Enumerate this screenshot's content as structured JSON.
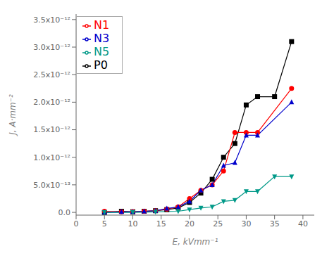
{
  "chart_data": {
    "type": "line",
    "xlabel": "E,  kVmm⁻¹",
    "ylabel": "J,  A·mm⁻²",
    "xlim": [
      0,
      42
    ],
    "ylim": [
      -5e-14,
      3.6e-12
    ],
    "xticks": [
      0,
      5,
      10,
      15,
      20,
      25,
      30,
      35,
      40
    ],
    "yticks": [
      {
        "value": 0.0,
        "label": "0.0"
      },
      {
        "value": 5e-13,
        "label": "5.0x10⁻¹³"
      },
      {
        "value": 1e-12,
        "label": "1.0x10⁻¹²"
      },
      {
        "value": 1.5e-12,
        "label": "1.5x10⁻¹²"
      },
      {
        "value": 2e-12,
        "label": "2.0x10⁻¹²"
      },
      {
        "value": 2.5e-12,
        "label": "2.5x10⁻¹²"
      },
      {
        "value": 3e-12,
        "label": "3.0x10⁻¹²"
      },
      {
        "value": 3.5e-12,
        "label": "3.5x10⁻¹²"
      }
    ],
    "grid": false,
    "legend": "upper left",
    "series": [
      {
        "name": "P0",
        "color": "#000000",
        "marker": "square",
        "x": [
          5,
          8,
          10,
          12,
          14,
          16,
          18,
          20,
          22,
          24,
          26,
          28,
          30,
          32,
          35,
          38
        ],
        "values": [
          0.0,
          2e-14,
          1e-14,
          2e-14,
          3e-14,
          5e-14,
          8e-14,
          1.8e-13,
          3.5e-13,
          6e-13,
          1e-12,
          1.25e-12,
          1.95e-12,
          2.1e-12,
          2.1e-12,
          3.1e-12
        ]
      },
      {
        "name": "N1",
        "color": "#ff0000",
        "marker": "circle",
        "x": [
          5,
          8,
          10,
          12,
          14,
          16,
          18,
          20,
          22,
          24,
          26,
          28,
          30,
          32,
          38
        ],
        "values": [
          2e-14,
          1e-14,
          1e-14,
          2e-14,
          3e-14,
          6e-14,
          1e-13,
          2.5e-13,
          4e-13,
          5e-13,
          7.5e-13,
          1.45e-12,
          1.45e-12,
          1.45e-12,
          2.25e-12
        ]
      },
      {
        "name": "N3",
        "color": "#0000cc",
        "marker": "triangle-up",
        "x": [
          5,
          8,
          10,
          12,
          14,
          16,
          18,
          20,
          22,
          24,
          26,
          28,
          30,
          32,
          38
        ],
        "values": [
          0.0,
          1e-14,
          1e-14,
          2e-14,
          3e-14,
          7e-14,
          1e-13,
          2e-13,
          4e-13,
          5e-13,
          8.5e-13,
          9e-13,
          1.4e-12,
          1.4e-12,
          2e-12
        ]
      },
      {
        "name": "N5",
        "color": "#009988",
        "marker": "triangle-down",
        "x": [
          5,
          10,
          14,
          18,
          20,
          22,
          24,
          26,
          28,
          30,
          32,
          35,
          38
        ],
        "values": [
          0.0,
          0.0,
          1e-14,
          2e-14,
          5e-14,
          8e-14,
          1e-13,
          2e-13,
          2.2e-13,
          3.8e-13,
          3.8e-13,
          6.5e-13,
          6.5e-13
        ]
      }
    ]
  }
}
